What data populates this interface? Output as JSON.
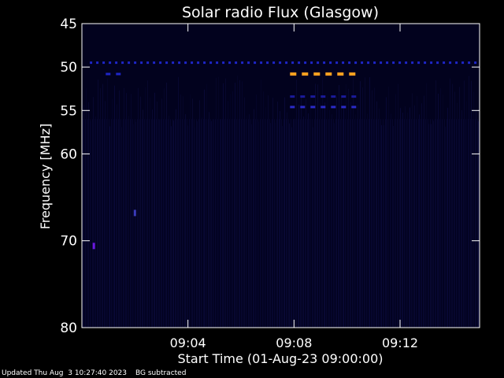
{
  "chart_data": {
    "type": "heatmap",
    "title": "Solar radio Flux (Glasgow)",
    "xlabel": "Start Time (01-Aug-23 09:00:00)",
    "ylabel": "Frequency [MHz]",
    "xlim_minutes": [
      0,
      15
    ],
    "ylim_mhz": [
      45,
      80
    ],
    "y_scale": "linear-descending",
    "x_ticks": [
      {
        "minute": 4,
        "label": "09:04"
      },
      {
        "minute": 8,
        "label": "09:08"
      },
      {
        "minute": 12,
        "label": "09:12"
      }
    ],
    "y_ticks": [
      {
        "mhz": 45,
        "label": "45"
      },
      {
        "mhz": 50,
        "label": "50"
      },
      {
        "mhz": 55,
        "label": "55"
      },
      {
        "mhz": 60,
        "label": "60"
      },
      {
        "mhz": 70,
        "label": "70"
      },
      {
        "mhz": 80,
        "label": "80"
      }
    ],
    "background_color": "#02021e",
    "interference_bands": [
      {
        "mhz": 49.5,
        "start_minute": 0.3,
        "end_minute": 15.0,
        "color": "#1e26c8",
        "style": "dashed"
      },
      {
        "mhz": 50.8,
        "start_minute": 7.85,
        "end_minute": 10.5,
        "color": "#ffa020",
        "style": "dashed"
      },
      {
        "mhz": 53.4,
        "start_minute": 7.85,
        "end_minute": 10.5,
        "color": "#1a1a9a",
        "style": "dashed"
      },
      {
        "mhz": 54.6,
        "start_minute": 7.85,
        "end_minute": 10.5,
        "color": "#2a2ac8",
        "style": "dashed"
      },
      {
        "mhz": 50.8,
        "start_minute": 0.9,
        "end_minute": 1.5,
        "color": "#1e26c8",
        "style": "dashed"
      }
    ],
    "spots": [
      {
        "minute": 0.45,
        "mhz": 70.6,
        "color": "#6a18e0"
      },
      {
        "minute": 2.0,
        "mhz": 66.8,
        "color": "#3a3ab8"
      }
    ],
    "grid": false
  },
  "footer": {
    "updated": "Updated Thu Aug  3 10:27:40 2023",
    "bg_note": "BG subtracted"
  }
}
